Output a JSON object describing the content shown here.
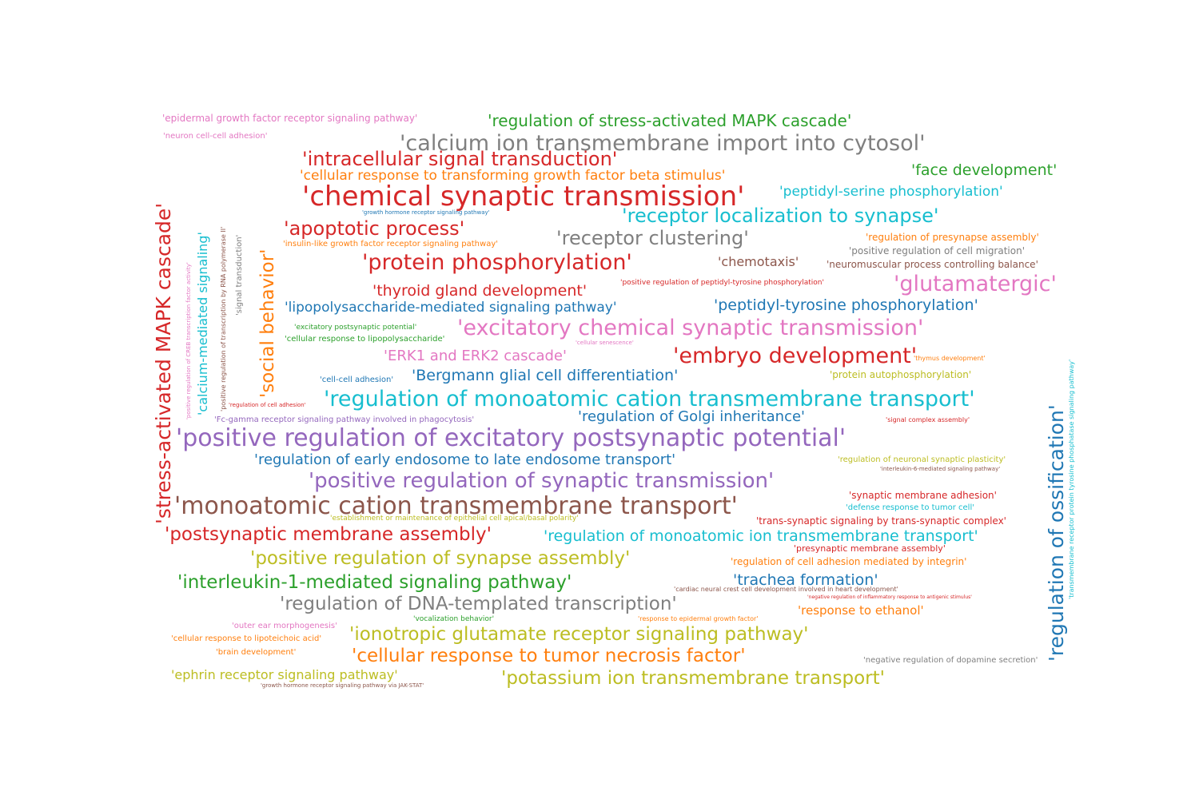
{
  "colors": {
    "red": "#d62728",
    "blue": "#1f77b4",
    "cyan": "#17becf",
    "gray": "#7f7f7f",
    "green": "#2ca02c",
    "orange": "#ff7f0e",
    "purple": "#9467bd",
    "brown": "#8c564b",
    "pink": "#e377c2",
    "olive": "#bcbd22"
  },
  "words": [
    "'epidermal growth factor receptor signaling pathway'",
    "'regulation of stress-activated MAPK cascade'",
    "'neuron cell-cell adhesion'",
    "'calcium ion transmembrane import into cytosol'",
    "'intracellular signal transduction'",
    "'cellular response to transforming growth factor beta stimulus'",
    "'face development'",
    "'chemical synaptic transmission'",
    "'peptidyl-serine phosphorylation'",
    "'growth hormone receptor signaling pathway'",
    "'receptor localization to synapse'",
    "'apoptotic process'",
    "'receptor clustering'",
    "'regulation of presynapse assembly'",
    "'insulin-like growth factor receptor signaling pathway'",
    "'positive regulation of cell migration'",
    "'protein phosphorylation'",
    "'chemotaxis'",
    "'neuromuscular process controlling balance'",
    "'thyroid gland development'",
    "'positive regulation of peptidyl-tyrosine phosphorylation'",
    "'glutamatergic'",
    "'lipopolysaccharide-mediated signaling pathway'",
    "'peptidyl-tyrosine phosphorylation'",
    "'excitatory postsynaptic potential'",
    "'excitatory chemical synaptic transmission'",
    "'cellular response to lipopolysaccharide'",
    "'cellular senescence'",
    "'ERK1 and ERK2 cascade'",
    "'embryo development'",
    "'thymus development'",
    "'cell-cell adhesion'",
    "'Bergmann glial cell differentiation'",
    "'protein autophosphorylation'",
    "'regulation of monoatomic cation transmembrane transport'",
    "'regulation of cell adhesion'",
    "'regulation of Golgi inheritance'",
    "'Fc-gamma receptor signaling pathway involved in phagocytosis'",
    "'signal complex assembly'",
    "'positive regulation of excitatory postsynaptic potential'",
    "'regulation of early endosome to late endosome transport'",
    "'regulation of neuronal synaptic plasticity'",
    "'interleukin-6-mediated signaling pathway'",
    "'positive regulation of synaptic transmission'",
    "'synaptic membrane adhesion'",
    "'monoatomic cation transmembrane transport'",
    "'defense response to tumor cell'",
    "'establishment or maintenance of epithelial cell apical/basal polarity'",
    "'trans-synaptic signaling by trans-synaptic complex'",
    "'postsynaptic membrane assembly'",
    "'regulation of monoatomic ion transmembrane transport'",
    "'presynaptic membrane assembly'",
    "'positive regulation of synapse assembly'",
    "'regulation of cell adhesion mediated by integrin'",
    "'interleukin-1-mediated signaling pathway'",
    "'trachea formation'",
    "'cardiac neural crest cell development involved in heart development'",
    "'negative regulation of inflammatory response to antigenic stimulus'",
    "'regulation of DNA-templated transcription'",
    "'response to ethanol'",
    "'vocalization behavior'",
    "'response to epidermal growth factor'",
    "'outer ear morphogenesis'",
    "'cellular response to lipoteichoic acid'",
    "'ionotropic glutamate receptor signaling pathway'",
    "'brain development'",
    "'cellular response to tumor necrosis factor'",
    "'negative regulation of dopamine secretion'",
    "'ephrin receptor signaling pathway'",
    "'potassium ion transmembrane transport'",
    "'growth hormone receptor signaling pathway via JAK-STAT'",
    "'stress-activated MAPK cascade'",
    "'positive regulation of CREB transcription factor activity'",
    "'calcium-mediated signaling'",
    "'positive regulation of transcription by RNA polymerase II'",
    "'signal transduction'",
    "'social behavior'",
    "'regulation of ossification'",
    "'transmembrane receptor protein tyrosine phosphatase signaling pathway'"
  ]
}
